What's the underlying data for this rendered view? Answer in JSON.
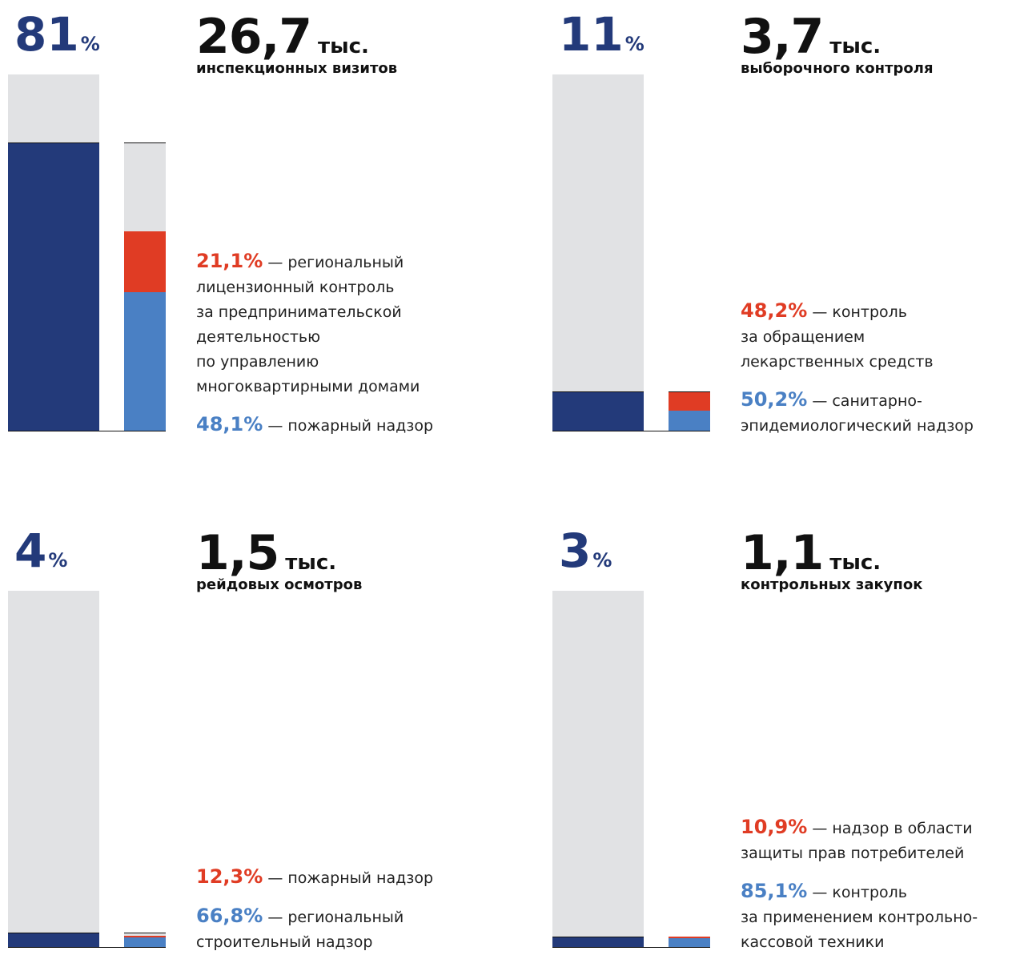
{
  "chart_data": [
    {
      "type": "share-bar",
      "share": 81,
      "share_unit": "%",
      "count": "26,7",
      "count_unit": "тыс.",
      "caption": "инспекционных визитов",
      "ylim": [
        0,
        100
      ],
      "color": "#233a7a",
      "items": [
        {
          "value": 21.1,
          "label": "21,1%",
          "color": "#e03c24",
          "text": "— региональный\nлицензионный контроль\nза предпринимательской\nдеятельностью\nпо управлению\nмногоквартирными домами"
        },
        {
          "value": 48.1,
          "label": "48,1%",
          "color": "#4a80c4",
          "text": "— пожарный надзор"
        }
      ]
    },
    {
      "type": "share-bar",
      "share": 11,
      "share_unit": "%",
      "count": "3,7",
      "count_unit": "тыс.",
      "caption": "выборочного контроля",
      "ylim": [
        0,
        100
      ],
      "color": "#233a7a",
      "items": [
        {
          "value": 48.2,
          "label": "48,2%",
          "color": "#e03c24",
          "text": "— контроль\nза обращением\nлекарственных средств"
        },
        {
          "value": 50.2,
          "label": "50,2%",
          "color": "#4a80c4",
          "text": "— санитарно-\nэпидемиологический надзор"
        }
      ]
    },
    {
      "type": "share-bar",
      "share": 4,
      "share_unit": "%",
      "count": "1,5",
      "count_unit": "тыс.",
      "caption": "рейдовых осмотров",
      "ylim": [
        0,
        100
      ],
      "color": "#233a7a",
      "items": [
        {
          "value": 12.3,
          "label": "12,3%",
          "color": "#e03c24",
          "text": "— пожарный надзор"
        },
        {
          "value": 66.8,
          "label": "66,8%",
          "color": "#4a80c4",
          "text": "— региональный\nстроительный надзор"
        }
      ]
    },
    {
      "type": "share-bar",
      "share": 3,
      "share_unit": "%",
      "count": "1,1",
      "count_unit": "тыс.",
      "caption": "контрольных закупок",
      "ylim": [
        0,
        100
      ],
      "color": "#233a7a",
      "items": [
        {
          "value": 10.9,
          "label": "10,9%",
          "color": "#e03c24",
          "text": "— надзор в области\nзащиты прав потребителей"
        },
        {
          "value": 85.1,
          "label": "85,1%",
          "color": "#4a80c4",
          "text": "— контроль\nза применением контрольно-\nкассовой техники"
        }
      ]
    }
  ]
}
